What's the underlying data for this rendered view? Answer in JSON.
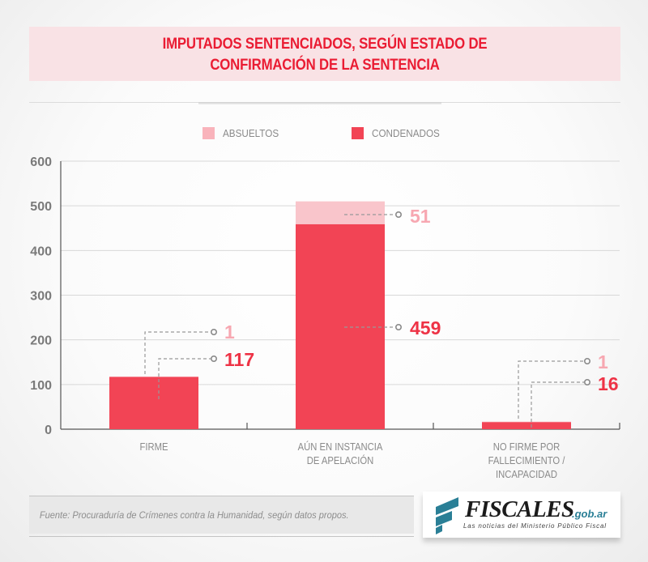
{
  "title": "IMPUTADOS SENTENCIADOS, SEGÚN ESTADO DE\nCONFIRMACIÓN DE LA SENTENCIA",
  "colors": {
    "absueltos": "#f9c5cb",
    "condenados": "#f24455",
    "title": "#ea1c33",
    "logo_accent": "#2a7f96"
  },
  "source": "Fuente: Procuraduría de Crímenes contra la Humanidad, según datos propos.",
  "logo": {
    "brand": "FISCALES",
    "domain": ".gob.ar",
    "tagline": "Las noticias del Ministerio Público Fiscal"
  },
  "chart_data": {
    "type": "bar",
    "stacked": true,
    "title": "IMPUTADOS SENTENCIADOS, SEGÚN ESTADO DE CONFIRMACIÓN DE LA SENTENCIA",
    "categories": [
      "FIRME",
      "AÚN EN INSTANCIA\nDE APELACIÓN",
      "NO FIRME POR\nFALLECIMIENTO / INCAPACIDAD"
    ],
    "series": [
      {
        "name": "CONDENADOS",
        "values": [
          117,
          459,
          16
        ]
      },
      {
        "name": "ABSUELTOS",
        "values": [
          1,
          51,
          1
        ]
      }
    ],
    "legend": [
      "ABSUELTOS",
      "CONDENADOS"
    ],
    "legend_position": "top-center",
    "yticks": [
      0,
      100,
      200,
      300,
      400,
      500,
      600
    ],
    "ylim": [
      0,
      600
    ],
    "grid": true,
    "xlabel": "",
    "ylabel": ""
  }
}
